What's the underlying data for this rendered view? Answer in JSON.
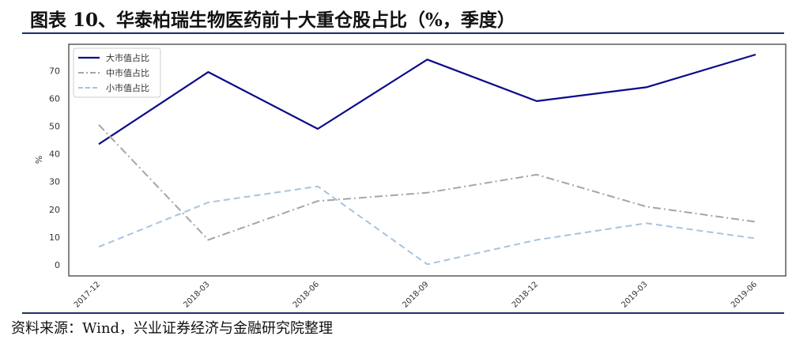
{
  "header": {
    "title": "图表 10、华泰柏瑞生物医药前十大重仓股占比（%，季度）"
  },
  "footer": {
    "source": "资料来源：Wind，兴业证券经济与金融研究院整理"
  },
  "chart_data": {
    "type": "line",
    "title": "",
    "xlabel": "",
    "ylabel": "%",
    "x": [
      "2017-12",
      "2018-03",
      "2018-06",
      "2018-09",
      "2018-12",
      "2019-03",
      "2019-06"
    ],
    "yticks": [
      0,
      10,
      20,
      30,
      40,
      50,
      60,
      70
    ],
    "ylim": [
      -4,
      79.5
    ],
    "legend_position": "top-left",
    "grid": false,
    "series": [
      {
        "name": "大市值占比",
        "color": "#0a0a8a",
        "dash": "solid",
        "values": [
          43.5,
          69.5,
          49.0,
          74.0,
          59.0,
          64.0,
          75.8
        ]
      },
      {
        "name": "中市值占比",
        "color": "#a5a5a5",
        "dash": "dashdot",
        "values": [
          50.5,
          9.0,
          23.0,
          26.0,
          32.5,
          21.0,
          15.5
        ]
      },
      {
        "name": "小市值占比",
        "color": "#a9c3e0",
        "dash": "dashed",
        "values": [
          6.5,
          22.5,
          28.3,
          0.2,
          9.0,
          15.0,
          9.5
        ]
      }
    ]
  }
}
